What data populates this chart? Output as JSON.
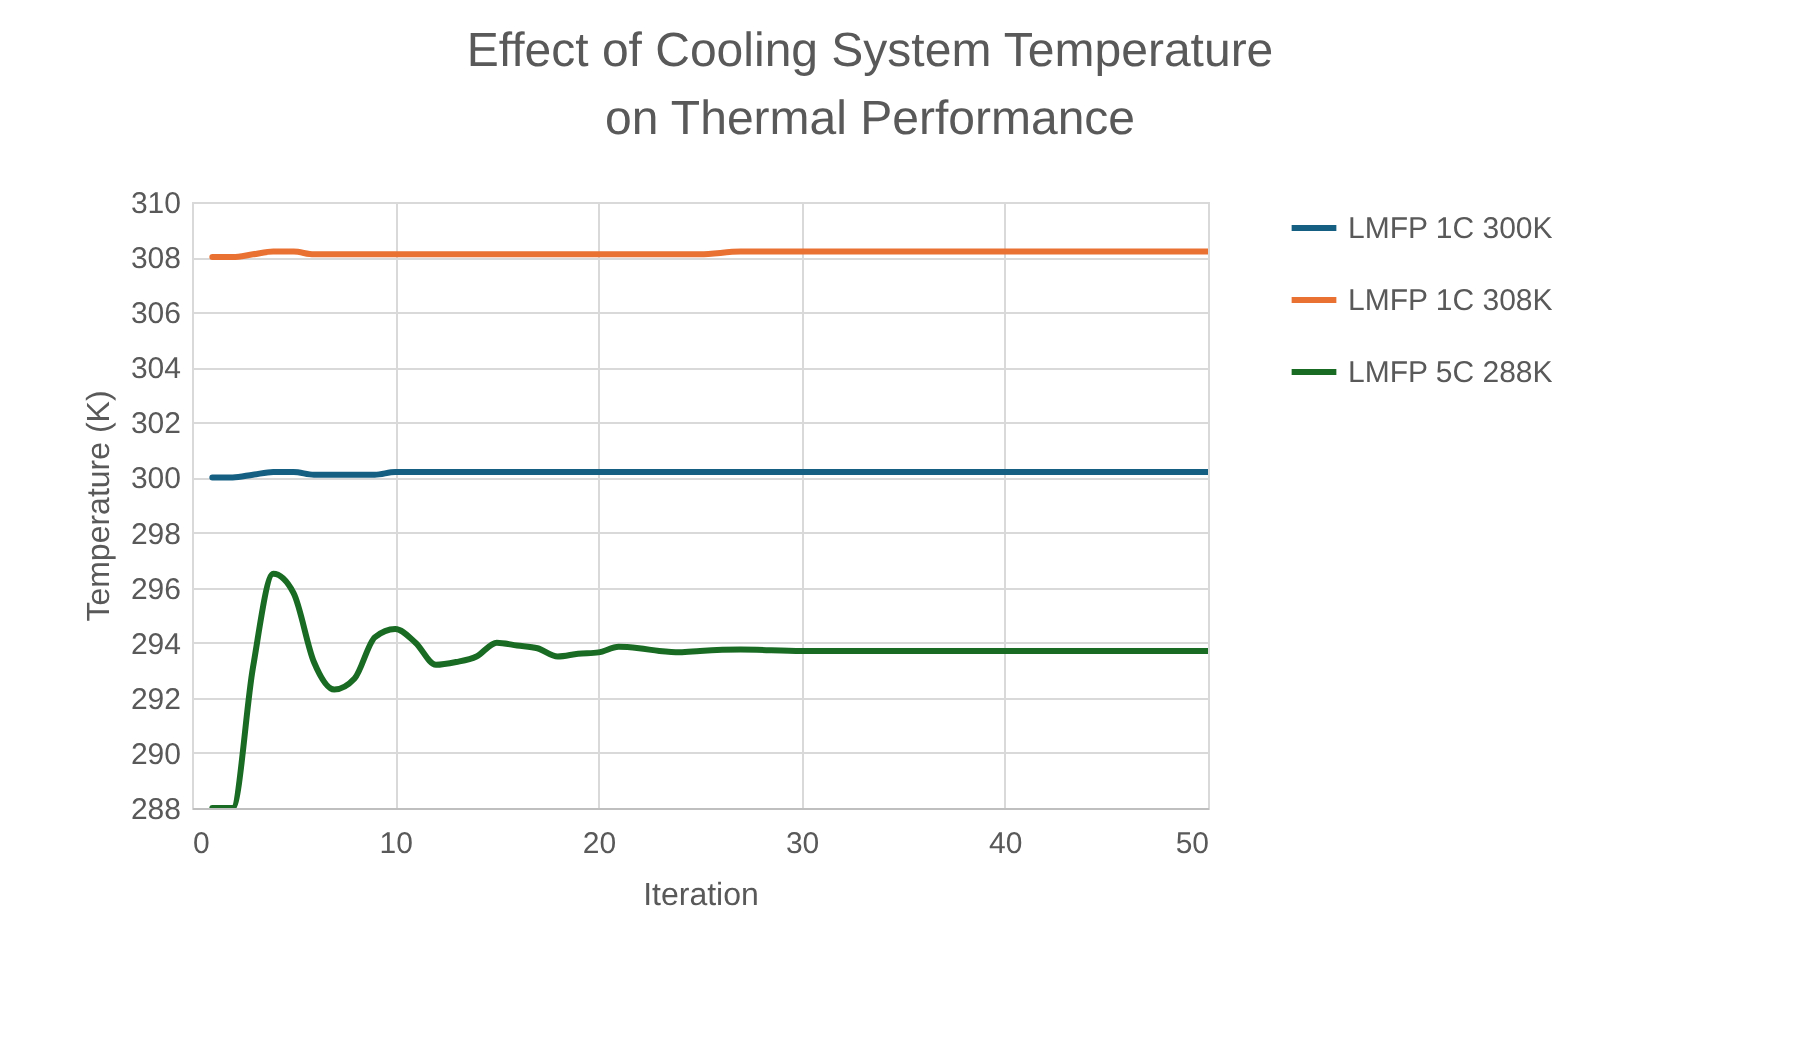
{
  "chart_data": {
    "type": "line",
    "title": "Effect of Cooling System Temperature on Thermal Performance",
    "xlabel": "Iteration",
    "ylabel": "Temperature (K)",
    "x": [
      1,
      2,
      3,
      4,
      5,
      6,
      7,
      8,
      9,
      10,
      11,
      12,
      13,
      14,
      15,
      16,
      17,
      18,
      19,
      20,
      21,
      22,
      23,
      24,
      25,
      27,
      30,
      40,
      50
    ],
    "series": [
      {
        "name": "LMFP 1C 300K",
        "color": "#156082",
        "values": [
          300.0,
          300.0,
          300.1,
          300.2,
          300.2,
          300.1,
          300.1,
          300.1,
          300.1,
          300.2,
          300.2,
          300.2,
          300.2,
          300.2,
          300.2,
          300.2,
          300.2,
          300.2,
          300.2,
          300.2,
          300.2,
          300.2,
          300.2,
          300.2,
          300.2,
          300.2,
          300.2,
          300.2,
          300.2
        ]
      },
      {
        "name": "LMFP 1C 308K",
        "color": "#e97132",
        "values": [
          308.0,
          308.0,
          308.1,
          308.2,
          308.2,
          308.1,
          308.1,
          308.1,
          308.1,
          308.1,
          308.1,
          308.1,
          308.1,
          308.1,
          308.1,
          308.1,
          308.1,
          308.1,
          308.1,
          308.1,
          308.1,
          308.1,
          308.1,
          308.1,
          308.1,
          308.2,
          308.2,
          308.2,
          308.2
        ]
      },
      {
        "name": "LMFP 5C 288K",
        "color": "#196b24",
        "values": [
          288.0,
          288.0,
          293.1,
          296.5,
          295.8,
          293.3,
          292.3,
          292.7,
          294.2,
          294.5,
          294.0,
          293.2,
          293.3,
          293.5,
          294.0,
          293.9,
          293.8,
          293.5,
          293.6,
          293.65,
          293.85,
          293.8,
          293.7,
          293.65,
          293.7,
          293.75,
          293.7,
          293.7,
          293.7
        ]
      }
    ],
    "xlim": [
      0,
      50
    ],
    "xticks": [
      0,
      10,
      20,
      30,
      40,
      50
    ],
    "ylim": [
      288,
      310
    ],
    "yticks": [
      288,
      290,
      292,
      294,
      296,
      298,
      300,
      302,
      304,
      306,
      308,
      310
    ],
    "grid": true,
    "legend": "right",
    "marker": "none",
    "line_style": "solid"
  }
}
